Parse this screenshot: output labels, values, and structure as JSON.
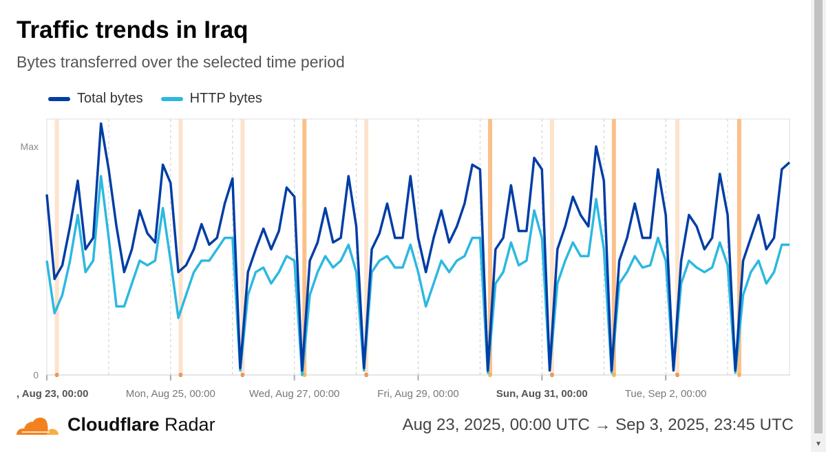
{
  "header": {
    "title": "Traffic trends in Iraq",
    "subtitle": "Bytes transferred over the selected time period"
  },
  "footer": {
    "brand_bold": "Cloudflare",
    "brand_light": "Radar",
    "range": "Aug 23, 2025, 00:00 UTC → Sep 3, 2025, 23:45 UTC"
  },
  "colors": {
    "total": "#003da5",
    "http": "#2db8e0",
    "band_light": "#fde3cc",
    "band_dark": "#fbc08a"
  },
  "chart_data": {
    "type": "line",
    "title": "Traffic trends in Iraq",
    "ylabel": "",
    "xlabel": "",
    "ylim": [
      0,
      1.12
    ],
    "xlim": [
      0,
      96
    ],
    "x_unit": "3-hour steps from Aug 23, 00:00 UTC",
    "y_ticks": [
      {
        "value": 0,
        "label": "0"
      },
      {
        "value": 1,
        "label": "Max"
      }
    ],
    "x_ticks": [
      {
        "value": 0,
        "label": ", Aug 23, 00:00",
        "bold": true
      },
      {
        "value": 16,
        "label": "Mon, Aug 25, 00:00",
        "bold": false
      },
      {
        "value": 32,
        "label": "Wed, Aug 27, 00:00",
        "bold": false
      },
      {
        "value": 48,
        "label": "Fri, Aug 29, 00:00",
        "bold": false
      },
      {
        "value": 64,
        "label": "Sun, Aug 31, 00:00",
        "bold": true
      },
      {
        "value": 80,
        "label": "Tue, Sep 2, 00:00",
        "bold": false
      }
    ],
    "minor_gridlines": [
      8,
      24,
      40,
      56,
      72,
      88
    ],
    "annotation_bands": [
      {
        "x": 1.3,
        "level": "light"
      },
      {
        "x": 17.3,
        "level": "light"
      },
      {
        "x": 25.3,
        "level": "light"
      },
      {
        "x": 33.3,
        "level": "dark"
      },
      {
        "x": 41.3,
        "level": "light"
      },
      {
        "x": 57.3,
        "level": "dark"
      },
      {
        "x": 65.3,
        "level": "light"
      },
      {
        "x": 73.3,
        "level": "dark"
      },
      {
        "x": 81.5,
        "level": "light"
      },
      {
        "x": 89.5,
        "level": "dark"
      }
    ],
    "series": [
      {
        "name": "Total bytes",
        "key": "total",
        "values": [
          0.79,
          0.42,
          0.48,
          0.65,
          0.85,
          0.55,
          0.6,
          1.1,
          0.9,
          0.65,
          0.45,
          0.55,
          0.72,
          0.62,
          0.58,
          0.92,
          0.84,
          0.45,
          0.48,
          0.55,
          0.66,
          0.57,
          0.6,
          0.75,
          0.86,
          0.03,
          0.45,
          0.55,
          0.64,
          0.55,
          0.63,
          0.82,
          0.78,
          0.02,
          0.5,
          0.58,
          0.73,
          0.58,
          0.6,
          0.87,
          0.65,
          0.03,
          0.55,
          0.62,
          0.75,
          0.6,
          0.6,
          0.87,
          0.6,
          0.45,
          0.6,
          0.72,
          0.58,
          0.65,
          0.75,
          0.92,
          0.9,
          0.02,
          0.55,
          0.6,
          0.83,
          0.63,
          0.63,
          0.95,
          0.9,
          0.02,
          0.55,
          0.65,
          0.78,
          0.7,
          0.65,
          1.0,
          0.85,
          0.02,
          0.5,
          0.6,
          0.75,
          0.6,
          0.6,
          0.9,
          0.7,
          0.02,
          0.5,
          0.7,
          0.65,
          0.55,
          0.6,
          0.88,
          0.7,
          0.02,
          0.5,
          0.6,
          0.7,
          0.55,
          0.6,
          0.9,
          0.93
        ]
      },
      {
        "name": "HTTP bytes",
        "key": "http",
        "values": [
          0.5,
          0.27,
          0.35,
          0.5,
          0.7,
          0.45,
          0.5,
          0.87,
          0.6,
          0.3,
          0.3,
          0.4,
          0.5,
          0.48,
          0.5,
          0.73,
          0.5,
          0.25,
          0.35,
          0.45,
          0.5,
          0.5,
          0.55,
          0.6,
          0.6,
          0.02,
          0.35,
          0.45,
          0.47,
          0.4,
          0.45,
          0.52,
          0.5,
          0.0,
          0.35,
          0.45,
          0.52,
          0.47,
          0.5,
          0.57,
          0.45,
          0.02,
          0.45,
          0.5,
          0.52,
          0.47,
          0.47,
          0.57,
          0.45,
          0.3,
          0.4,
          0.5,
          0.45,
          0.5,
          0.52,
          0.6,
          0.6,
          0.01,
          0.4,
          0.45,
          0.58,
          0.48,
          0.5,
          0.72,
          0.6,
          0.02,
          0.4,
          0.5,
          0.58,
          0.52,
          0.52,
          0.77,
          0.55,
          0.01,
          0.4,
          0.45,
          0.52,
          0.47,
          0.48,
          0.6,
          0.5,
          0.02,
          0.4,
          0.5,
          0.47,
          0.45,
          0.47,
          0.58,
          0.48,
          0.01,
          0.35,
          0.45,
          0.5,
          0.4,
          0.45,
          0.57,
          0.57
        ]
      }
    ],
    "legend": "top-left"
  }
}
